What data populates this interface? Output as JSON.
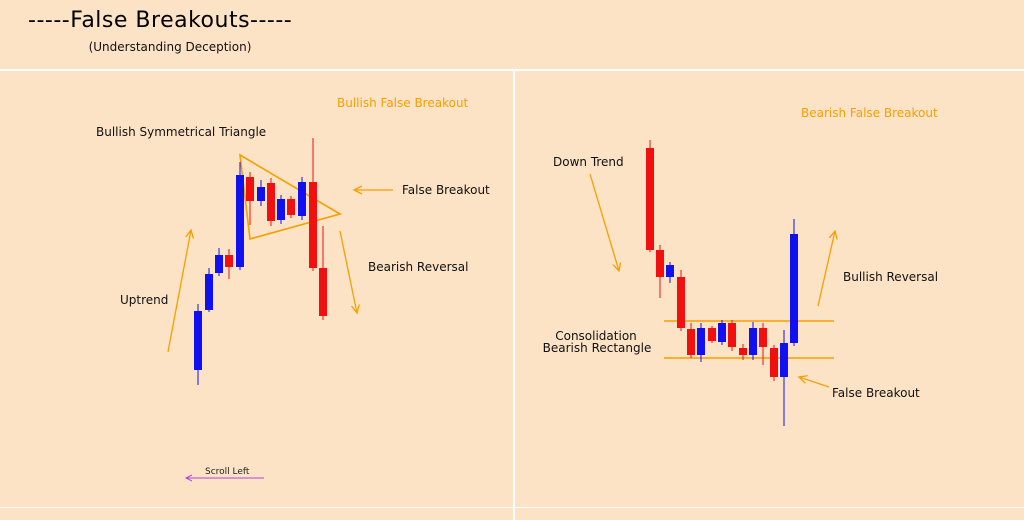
{
  "header": {
    "title": "-----False Breakouts-----",
    "subtitle": "(Understanding Deception)"
  },
  "left_panel": {
    "heading": "Bullish False Breakout",
    "pattern_label": "Bullish Symmetrical Triangle",
    "breakout_label": "False Breakout",
    "reversal_label": "Bearish Reversal",
    "trend_label": "Uptrend",
    "scroll_label": "Scroll Left"
  },
  "right_panel": {
    "heading": "Bearish False Breakout",
    "trend_label": "Down Trend",
    "reversal_label": "Bullish Reversal",
    "pattern_label_line1": "Consolidation",
    "pattern_label_line2": "Bearish Rectangle",
    "breakout_label": "False Breakout"
  },
  "colors": {
    "bull_candle": "#1010f0",
    "bear_candle": "#f01010",
    "annotation": "#f5a000",
    "scroll_arrow": "#b040e0"
  }
}
